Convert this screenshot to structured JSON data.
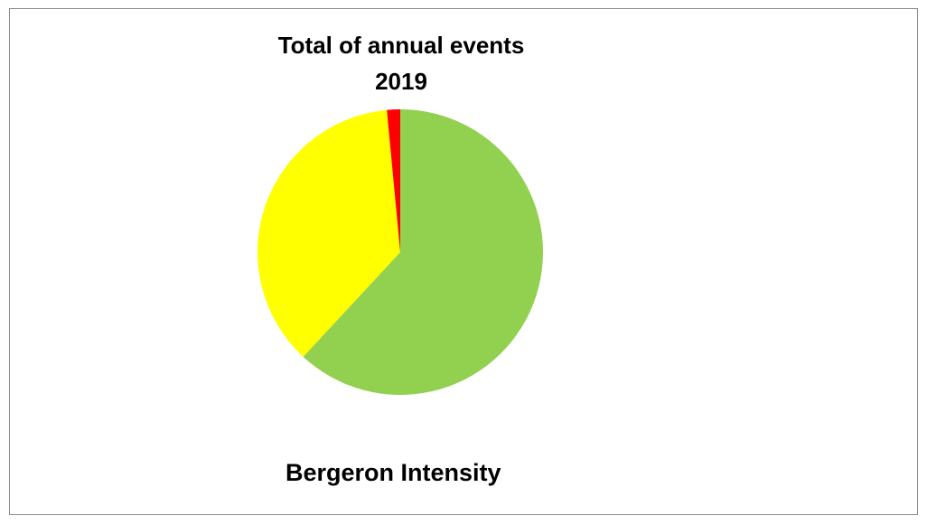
{
  "chart_data": {
    "type": "pie",
    "title_lines": [
      "Total of annual events",
      "2019"
    ],
    "slices": [
      {
        "value": 61.9,
        "color": "#92d050"
      },
      {
        "value": 36.6,
        "color": "#ffff00"
      },
      {
        "value": 1.5,
        "color": "#ff0000"
      }
    ],
    "caption": "Bergeron Intensity"
  }
}
